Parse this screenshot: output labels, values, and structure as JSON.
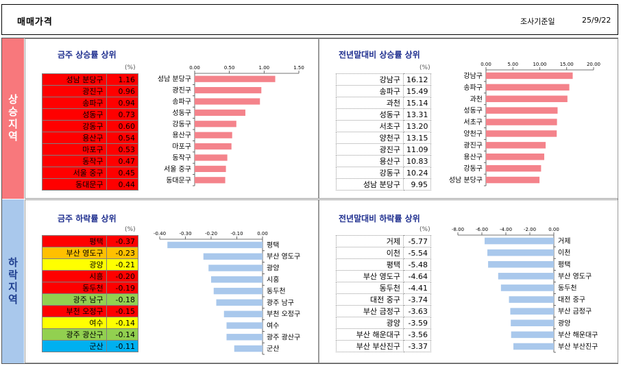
{
  "header": {
    "title": "매매가격",
    "date_label": "조사기준일",
    "date": "25/9/22"
  },
  "sides": {
    "up": "상승지역",
    "down": "하락지역"
  },
  "units": "(%)",
  "colors": {
    "red": "#ff0000",
    "orange": "#ffc000",
    "yellow": "#ffff00",
    "green": "#92d050",
    "blue": "#00b0f0",
    "bar_up": "#f4838b",
    "bar_down": "#a9c8ec"
  },
  "panels": {
    "weekly_up": {
      "title": "금주 상승률 상위",
      "rows": [
        {
          "name": "성남 분당구",
          "value": "1.16",
          "color": "red"
        },
        {
          "name": "광진구",
          "value": "0.96",
          "color": "red"
        },
        {
          "name": "송파구",
          "value": "0.94",
          "color": "red"
        },
        {
          "name": "성동구",
          "value": "0.73",
          "color": "red"
        },
        {
          "name": "강동구",
          "value": "0.60",
          "color": "red"
        },
        {
          "name": "용산구",
          "value": "0.54",
          "color": "red"
        },
        {
          "name": "마포구",
          "value": "0.53",
          "color": "red"
        },
        {
          "name": "동작구",
          "value": "0.47",
          "color": "red"
        },
        {
          "name": "서울 중구",
          "value": "0.45",
          "color": "red"
        },
        {
          "name": "동대문구",
          "value": "0.44",
          "color": "red"
        }
      ]
    },
    "ytd_up": {
      "title": "전년말대비 상승률 상위",
      "rows": [
        {
          "name": "강남구",
          "value": "16.12"
        },
        {
          "name": "송파구",
          "value": "15.49"
        },
        {
          "name": "과천",
          "value": "15.14"
        },
        {
          "name": "성동구",
          "value": "13.31"
        },
        {
          "name": "서초구",
          "value": "13.20"
        },
        {
          "name": "양천구",
          "value": "13.15"
        },
        {
          "name": "광진구",
          "value": "11.09"
        },
        {
          "name": "용산구",
          "value": "10.83"
        },
        {
          "name": "강동구",
          "value": "10.24"
        },
        {
          "name": "성남 분당구",
          "value": "9.95"
        }
      ]
    },
    "weekly_down": {
      "title": "금주 하락률 상위",
      "rows": [
        {
          "name": "평택",
          "value": "-0.37",
          "color": "red"
        },
        {
          "name": "부산 영도구",
          "value": "-0.23",
          "color": "orange"
        },
        {
          "name": "광양",
          "value": "-0.21",
          "color": "yellow"
        },
        {
          "name": "시흥",
          "value": "-0.20",
          "color": "red"
        },
        {
          "name": "동두천",
          "value": "-0.19",
          "color": "red"
        },
        {
          "name": "광주 남구",
          "value": "-0.18",
          "color": "green"
        },
        {
          "name": "부천 오정구",
          "value": "-0.15",
          "color": "red"
        },
        {
          "name": "여수",
          "value": "-0.14",
          "color": "yellow"
        },
        {
          "name": "광주 광산구",
          "value": "-0.14",
          "color": "green"
        },
        {
          "name": "군산",
          "value": "-0.11",
          "color": "blue"
        }
      ]
    },
    "ytd_down": {
      "title": "전년말대비 하락률 상위",
      "rows": [
        {
          "name": "거제",
          "value": "-5.77"
        },
        {
          "name": "이천",
          "value": "-5.54"
        },
        {
          "name": "평택",
          "value": "-5.48"
        },
        {
          "name": "부산 영도구",
          "value": "-4.64"
        },
        {
          "name": "동두천",
          "value": "-4.41"
        },
        {
          "name": "대전 중구",
          "value": "-3.74"
        },
        {
          "name": "부산 금정구",
          "value": "-3.63"
        },
        {
          "name": "광양",
          "value": "-3.59"
        },
        {
          "name": "부산 해운대구",
          "value": "-3.56"
        },
        {
          "name": "부산 부산진구",
          "value": "-3.37"
        }
      ]
    }
  },
  "chart_data": [
    {
      "type": "bar",
      "orientation": "horizontal",
      "title": "금주 상승률 상위",
      "categories": [
        "성남 분당구",
        "광진구",
        "송파구",
        "성동구",
        "강동구",
        "용산구",
        "마포구",
        "동작구",
        "서울 중구",
        "동대문구"
      ],
      "values": [
        1.16,
        0.96,
        0.94,
        0.73,
        0.6,
        0.54,
        0.53,
        0.47,
        0.45,
        0.44
      ],
      "xlim": [
        0,
        1.5
      ],
      "ticks": [
        "0.00",
        "0.50",
        "1.00",
        "1.50"
      ],
      "label_side": "left"
    },
    {
      "type": "bar",
      "orientation": "horizontal",
      "title": "전년말대비 상승률 상위",
      "categories": [
        "강남구",
        "송파구",
        "과천",
        "성동구",
        "서초구",
        "양천구",
        "광진구",
        "용산구",
        "강동구",
        "성남 분당구"
      ],
      "values": [
        16.12,
        15.49,
        15.14,
        13.31,
        13.2,
        13.15,
        11.09,
        10.83,
        10.24,
        9.95
      ],
      "xlim": [
        0,
        20
      ],
      "ticks": [
        "0.00",
        "5.00",
        "10.00",
        "15.00",
        "20.00"
      ],
      "label_side": "left"
    },
    {
      "type": "bar",
      "orientation": "horizontal",
      "title": "금주 하락률 상위",
      "categories": [
        "평택",
        "부산 영도구",
        "광양",
        "시흥",
        "동두천",
        "광주 남구",
        "부천 오정구",
        "여수",
        "광주 광산구",
        "군산"
      ],
      "values": [
        -0.37,
        -0.23,
        -0.21,
        -0.2,
        -0.19,
        -0.18,
        -0.15,
        -0.14,
        -0.14,
        -0.11
      ],
      "xlim": [
        -0.4,
        0
      ],
      "ticks": [
        "-0.40",
        "-0.30",
        "-0.20",
        "-0.10",
        "0.00"
      ],
      "label_side": "right"
    },
    {
      "type": "bar",
      "orientation": "horizontal",
      "title": "전년말대비 하락률 상위",
      "categories": [
        "거제",
        "이천",
        "평택",
        "부산 영도구",
        "동두천",
        "대전 중구",
        "부산 금정구",
        "광양",
        "부산 해운대구",
        "부산 부산진구"
      ],
      "values": [
        -5.77,
        -5.54,
        -5.48,
        -4.64,
        -4.41,
        -3.74,
        -3.63,
        -3.59,
        -3.56,
        -3.37
      ],
      "xlim": [
        -8,
        0
      ],
      "ticks": [
        "-8.00",
        "-6.00",
        "-4.00",
        "-2.00",
        "0.00"
      ],
      "label_side": "right"
    }
  ]
}
